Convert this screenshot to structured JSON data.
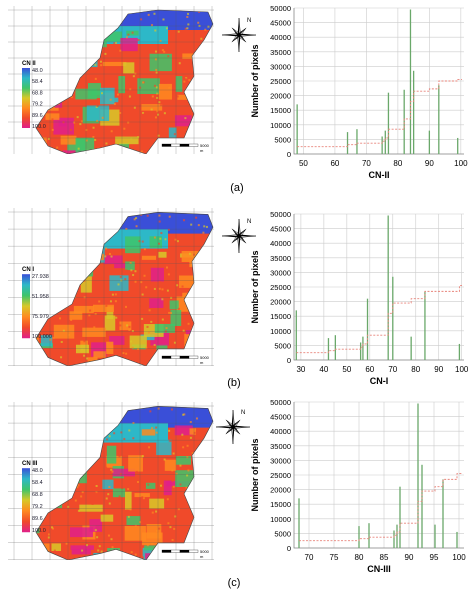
{
  "colors": {
    "bar": "#6aa86a",
    "cdf": "#e8837a",
    "grid": "#cccccc",
    "palette": [
      "#3a4fd8",
      "#2db8c8",
      "#3fc46a",
      "#d8c828",
      "#ff8a20",
      "#f04a2a",
      "#e0208a"
    ]
  },
  "icons": {
    "compass": "compass-rose-icon",
    "scalebar": "scale-bar-icon"
  },
  "panels": [
    {
      "label": "(a)",
      "legend": {
        "title": "CN II",
        "values": [
          "48.0",
          "58.4",
          "68.8",
          "79.2",
          "89.6",
          "100.0"
        ]
      },
      "compass_n": "N",
      "scale": {
        "end": "5000",
        "unit": "m"
      }
    },
    {
      "label": "(b)",
      "legend": {
        "title": "CN I",
        "values": [
          "27.938",
          "51.958",
          "75.979",
          "100.000"
        ]
      },
      "compass_n": "N",
      "scale": {
        "end": "5000",
        "unit": "m"
      }
    },
    {
      "label": "(c)",
      "legend": {
        "title": "CN III",
        "values": [
          "48.0",
          "58.4",
          "68.8",
          "79.2",
          "89.6",
          "100.0"
        ]
      },
      "compass_n": "N",
      "scale": {
        "end": "5000",
        "unit": "m"
      }
    }
  ],
  "chart_data": [
    {
      "type": "bar",
      "xlabel": "CN-II",
      "ylabel": "Number of pixels",
      "xlim": [
        47,
        101
      ],
      "ylim": [
        0,
        50000
      ],
      "xticks": [
        50,
        60,
        70,
        80,
        90,
        100
      ],
      "yticks": [
        0,
        5000,
        10000,
        15000,
        20000,
        25000,
        30000,
        35000,
        40000,
        45000,
        50000
      ],
      "x": [
        48,
        64,
        67,
        75,
        76,
        77,
        82,
        84,
        85,
        90,
        93,
        99
      ],
      "values": [
        17000,
        7500,
        8500,
        6000,
        8000,
        21000,
        22000,
        49500,
        28500,
        8000,
        23500,
        5500
      ],
      "cdf": [
        [
          48,
          2500
        ],
        [
          64,
          3200
        ],
        [
          67,
          3700
        ],
        [
          75,
          4400
        ],
        [
          76,
          5500
        ],
        [
          77,
          8500
        ],
        [
          82,
          12000
        ],
        [
          84,
          18000
        ],
        [
          85,
          21500
        ],
        [
          90,
          22300
        ],
        [
          93,
          25000
        ],
        [
          99,
          25500
        ]
      ]
    },
    {
      "type": "bar",
      "xlabel": "CN-I",
      "ylabel": "Number of pixels",
      "xlim": [
        27,
        101
      ],
      "ylim": [
        0,
        50000
      ],
      "xticks": [
        30,
        40,
        50,
        60,
        70,
        80,
        90,
        100
      ],
      "yticks": [
        0,
        5000,
        10000,
        15000,
        20000,
        25000,
        30000,
        35000,
        40000,
        45000,
        50000
      ],
      "x": [
        28,
        42,
        45,
        56,
        57,
        59,
        68,
        70,
        78,
        84,
        99
      ],
      "values": [
        17000,
        7500,
        8500,
        6000,
        8000,
        21000,
        49500,
        28500,
        8000,
        23500,
        5500
      ],
      "cdf": [
        [
          28,
          2500
        ],
        [
          42,
          3200
        ],
        [
          45,
          3700
        ],
        [
          56,
          4400
        ],
        [
          57,
          5500
        ],
        [
          59,
          8500
        ],
        [
          68,
          16000
        ],
        [
          70,
          19500
        ],
        [
          78,
          21000
        ],
        [
          84,
          23500
        ],
        [
          99,
          25500
        ]
      ]
    },
    {
      "type": "bar",
      "xlabel": "CN-III",
      "ylabel": "Number of pixels",
      "xlim": [
        67,
        101
      ],
      "ylim": [
        0,
        50000
      ],
      "xticks": [
        70,
        75,
        80,
        85,
        90,
        95,
        100
      ],
      "yticks": [
        0,
        5000,
        10000,
        15000,
        20000,
        25000,
        30000,
        35000,
        40000,
        45000,
        50000
      ],
      "x": [
        68,
        80,
        82,
        87,
        87.6,
        88.2,
        91.8,
        92.6,
        95.2,
        96.8,
        99.6
      ],
      "values": [
        17000,
        7500,
        8500,
        6000,
        8000,
        21000,
        49500,
        28500,
        8000,
        23500,
        5500
      ],
      "cdf": [
        [
          68,
          2500
        ],
        [
          80,
          3200
        ],
        [
          82,
          3700
        ],
        [
          87,
          4400
        ],
        [
          87.6,
          5500
        ],
        [
          88.2,
          8500
        ],
        [
          91.8,
          16000
        ],
        [
          92.6,
          19500
        ],
        [
          95.2,
          21000
        ],
        [
          96.8,
          23500
        ],
        [
          99.6,
          25500
        ]
      ]
    }
  ]
}
